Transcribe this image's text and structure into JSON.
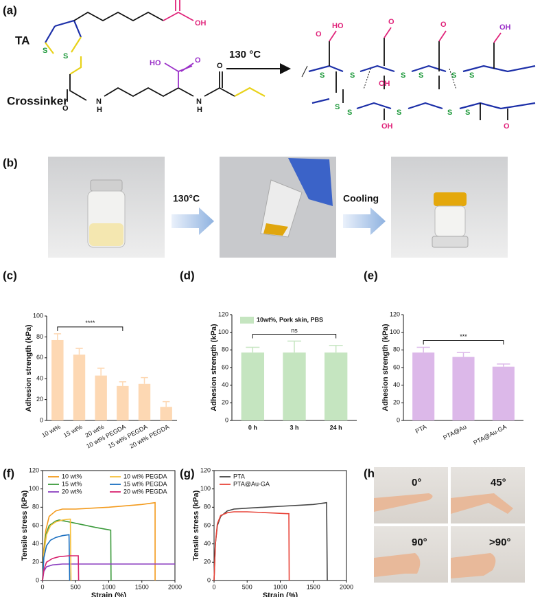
{
  "panel_labels": [
    "(a)",
    "(b)",
    "(c)",
    "(d)",
    "(e)",
    "(f)",
    "(g)",
    "(h)"
  ],
  "scheme": {
    "ta_label": "TA",
    "crosslinker_label": "Crossinker",
    "condition": "130 °C",
    "ta_atoms": [
      "S",
      "S",
      "O",
      "OH"
    ],
    "crosslinker_atoms": [
      "O",
      "N",
      "H",
      "HO",
      "O",
      "N",
      "H",
      "O"
    ],
    "network_atoms": [
      "S",
      "S",
      "S",
      "S",
      "S",
      "S",
      "S",
      "S",
      "S",
      "S",
      "S",
      "HO",
      "O",
      "O",
      "O",
      "OH",
      "OH",
      "OH",
      "O"
    ]
  },
  "photos_b": {
    "step1": "130°C",
    "step2": "Cooling"
  },
  "photos_h": {
    "angles": [
      "0°",
      "45°",
      "90°",
      ">90°"
    ]
  },
  "chart_data": [
    {
      "type": "bar",
      "ylabel": "Adhesion strength (kPa)",
      "categories": [
        "10 wt%",
        "15 wt%",
        "20 wt%",
        "10 wt% PEGDA",
        "15 wt% PEGDA",
        "20 wt% PEGDA"
      ],
      "values": [
        77,
        63,
        43,
        33,
        35,
        13
      ],
      "errors": [
        6,
        6,
        7,
        4,
        6,
        5
      ],
      "color": "#fdd8b3",
      "ylim": [
        0,
        100
      ],
      "yticks": [
        0,
        20,
        40,
        60,
        80,
        100
      ],
      "significance": {
        "label": "****",
        "between": [
          "10 wt%",
          "10 wt% PEGDA"
        ]
      }
    },
    {
      "type": "bar",
      "ylabel": "Adhesion strength (kPa)",
      "categories": [
        "0 h",
        "3 h",
        "24 h"
      ],
      "series": [
        {
          "name": "10wt%, Pork skin, PBS",
          "color": "#c5e5c0",
          "values": [
            77,
            77,
            77
          ],
          "errors": [
            6,
            13,
            8
          ]
        }
      ],
      "ylim": [
        0,
        120
      ],
      "yticks": [
        0,
        20,
        40,
        60,
        80,
        100,
        120
      ],
      "significance": {
        "label": "ns",
        "between": [
          "0 h",
          "24 h"
        ]
      }
    },
    {
      "type": "bar",
      "ylabel": "Adhesion strength (kPa)",
      "categories": [
        "PTA",
        "PTA@Au",
        "PTA@Au-GA"
      ],
      "values": [
        77,
        72,
        61
      ],
      "errors": [
        6,
        5,
        3
      ],
      "color": "#dcb8e9",
      "ylim": [
        0,
        120
      ],
      "yticks": [
        0,
        20,
        40,
        60,
        80,
        100,
        120
      ],
      "significance": {
        "label": "***",
        "between": [
          "PTA",
          "PTA@Au-GA"
        ]
      }
    },
    {
      "type": "line",
      "xlabel": "Strain (%)",
      "ylabel": "Tensile stress (kPa)",
      "xlim": [
        0,
        2000
      ],
      "xticks": [
        0,
        500,
        1000,
        1500,
        2000
      ],
      "ylim": [
        0,
        120
      ],
      "yticks": [
        0,
        20,
        40,
        60,
        80,
        100,
        120
      ],
      "legend": "upper left",
      "series": [
        {
          "name": "10 wt%",
          "color": "#f39a1c",
          "x": [
            0,
            20,
            50,
            100,
            200,
            300,
            500,
            1000,
            1500,
            1700,
            1700
          ],
          "values": [
            0,
            35,
            55,
            70,
            76,
            78,
            78,
            80,
            83,
            85,
            0
          ]
        },
        {
          "name": "15 wt%",
          "color": "#3b9a3b",
          "x": [
            0,
            20,
            50,
            100,
            200,
            250,
            400,
            600,
            800,
            1030,
            1035
          ],
          "values": [
            0,
            30,
            50,
            60,
            65,
            66,
            64,
            61,
            58,
            55,
            0
          ]
        },
        {
          "name": "20 wt%",
          "color": "#8b3fc0",
          "x": [
            0,
            20,
            60,
            150,
            300,
            500,
            1000,
            1500,
            2000
          ],
          "values": [
            0,
            10,
            15,
            17,
            18,
            18,
            18,
            18,
            18
          ]
        },
        {
          "name": "10 wt% PEGDA",
          "color": "#f6c03c",
          "x": [
            0,
            20,
            60,
            120,
            200,
            300,
            400,
            420,
            430
          ],
          "values": [
            0,
            30,
            50,
            60,
            64,
            66,
            67,
            67,
            0
          ]
        },
        {
          "name": "15 wt% PEGDA",
          "color": "#1a6fc0",
          "x": [
            0,
            20,
            60,
            120,
            200,
            300,
            400,
            410
          ],
          "values": [
            0,
            25,
            38,
            44,
            47,
            49,
            50,
            0
          ]
        },
        {
          "name": "20 wt% PEGDA",
          "color": "#d8236f",
          "x": [
            0,
            20,
            60,
            150,
            250,
            400,
            540,
            545
          ],
          "values": [
            0,
            12,
            20,
            24,
            26,
            27,
            27,
            0
          ]
        }
      ]
    },
    {
      "type": "line",
      "xlabel": "Strain (%)",
      "ylabel": "Tensile stress (kPa)",
      "xlim": [
        0,
        2000
      ],
      "xticks": [
        0,
        500,
        1000,
        1500,
        2000
      ],
      "ylim": [
        0,
        120
      ],
      "yticks": [
        0,
        20,
        40,
        60,
        80,
        100,
        120
      ],
      "legend": "upper left",
      "series": [
        {
          "name": "PTA",
          "color": "#444444",
          "x": [
            0,
            20,
            50,
            100,
            200,
            300,
            500,
            1000,
            1500,
            1700,
            1710
          ],
          "values": [
            0,
            40,
            60,
            70,
            76,
            78,
            79,
            81,
            83,
            85,
            0
          ]
        },
        {
          "name": "PTA@Au-GA",
          "color": "#e8453a",
          "x": [
            0,
            20,
            50,
            100,
            200,
            300,
            500,
            800,
            1100,
            1130,
            1135
          ],
          "values": [
            0,
            40,
            62,
            71,
            74,
            75,
            75,
            74,
            73,
            73,
            0
          ]
        }
      ]
    }
  ]
}
